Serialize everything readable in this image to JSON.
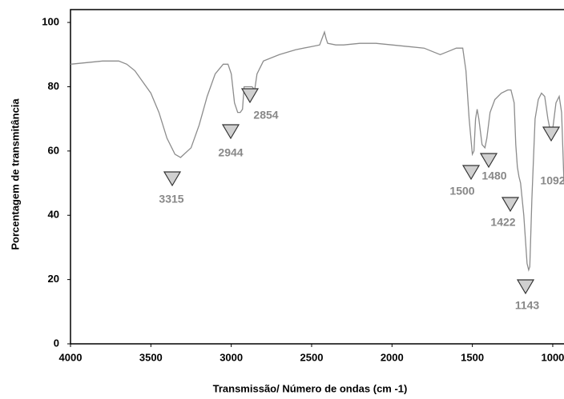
{
  "chart_data": {
    "type": "line",
    "xlabel": "Transmissão/ Número de ondas (cm -1)",
    "ylabel": "Porcentagem de transmitância",
    "color": "#8c8c8c",
    "x": [
      4000,
      3900,
      3800,
      3700,
      3650,
      3600,
      3500,
      3450,
      3400,
      3350,
      3315,
      3250,
      3200,
      3150,
      3100,
      3050,
      3020,
      3000,
      2980,
      2960,
      2944,
      2930,
      2920,
      2900,
      2870,
      2854,
      2840,
      2800,
      2700,
      2600,
      2500,
      2450,
      2420,
      2410,
      2400,
      2350,
      2300,
      2200,
      2100,
      2000,
      1900,
      1800,
      1750,
      1700,
      1650,
      1600,
      1560,
      1540,
      1520,
      1500,
      1490,
      1480,
      1470,
      1460,
      1440,
      1422,
      1410,
      1390,
      1360,
      1320,
      1280,
      1260,
      1240,
      1230,
      1220,
      1210,
      1200,
      1180,
      1160,
      1150,
      1143,
      1130,
      1110,
      1090,
      1070,
      1050,
      1030,
      1010,
      1000,
      980,
      960,
      945,
      930
    ],
    "values": [
      87,
      87.5,
      88,
      88,
      87,
      85,
      78,
      72,
      64,
      59,
      58,
      61,
      68,
      77,
      84,
      87,
      87,
      84,
      75,
      72,
      72,
      73,
      80,
      80,
      80,
      79,
      84,
      88,
      90,
      91.5,
      92.5,
      93,
      97,
      95,
      93.5,
      93,
      93,
      93.5,
      93.5,
      93,
      92.5,
      92,
      91,
      90,
      91,
      92,
      92,
      85,
      70,
      59,
      60,
      70,
      73,
      70,
      62,
      61,
      64,
      72,
      76,
      78,
      79,
      79,
      75,
      62,
      55,
      52,
      50,
      40,
      25,
      23,
      24,
      45,
      70,
      76,
      78,
      77,
      70,
      65,
      67,
      75,
      77,
      72,
      50
    ],
    "xlim": [
      4000,
      930
    ],
    "ylim": [
      0,
      104
    ],
    "xticks": [
      4000,
      3500,
      3000,
      2500,
      2000,
      1500,
      1000
    ],
    "yticks": [
      0,
      20,
      40,
      60,
      80,
      100
    ],
    "annotations": [
      "3315",
      "2944",
      "2854",
      "1500",
      "1480",
      "1422",
      "1143",
      "1092"
    ]
  }
}
